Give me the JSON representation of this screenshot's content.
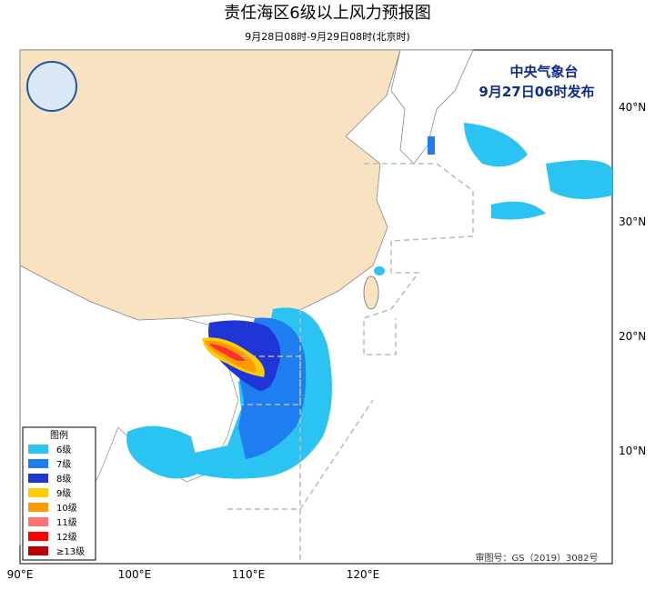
{
  "header": {
    "title": "责任海区6级以上风力预报图",
    "subtitle": "9月28日08时-9月29日08时(北京时)"
  },
  "issuer": {
    "agency": "中央气象台",
    "issued": "9月27日06时发布"
  },
  "axes": {
    "longitude": [
      "90°E",
      "100°E",
      "110°E",
      "120°E"
    ],
    "latitude": [
      "40°N",
      "30°N",
      "20°N",
      "10°N"
    ]
  },
  "legend": {
    "title": "图例",
    "items": [
      "6级",
      "7级",
      "8级",
      "9级",
      "10级",
      "11级",
      "12级",
      "≥13级"
    ]
  },
  "footer": {
    "approval": "审图号：GS（2019）3082号"
  }
}
